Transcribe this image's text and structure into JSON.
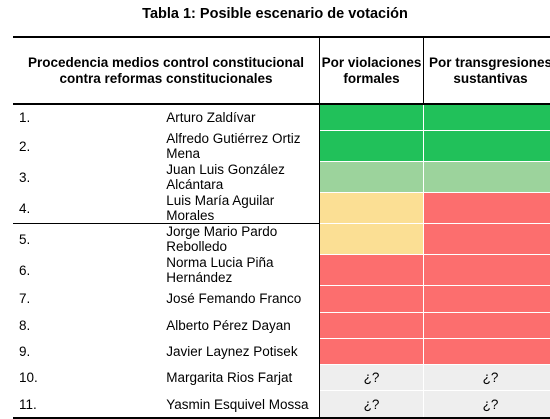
{
  "title": "Tabla 1: Posible escenario de votación",
  "headers": {
    "proc": "Procedencia medios control constitucional contra reformas constitucionales",
    "formal": "Por violaciones formales",
    "sust": "Por transgresiones sustantivas"
  },
  "colors": {
    "green": "#21c15a",
    "light_green": "#9cd39c",
    "yellow": "#fbdf94",
    "red": "#fc6e6e",
    "unknown": "#eeeeee"
  },
  "rows": [
    {
      "num": "1.",
      "name": "Arturo Zaldívar",
      "formal": "",
      "sust": ""
    },
    {
      "num": "2.",
      "name": "Alfredo Gutiérrez Ortiz Mena",
      "formal": "",
      "sust": ""
    },
    {
      "num": "3.",
      "name": "Juan Luis González Alcántara",
      "formal": "",
      "sust": ""
    },
    {
      "num": "4.",
      "name": "Luis María Aguilar Morales",
      "formal": "",
      "sust": ""
    },
    {
      "num": "5.",
      "name": "Jorge Mario Pardo Rebolledo",
      "formal": "",
      "sust": ""
    },
    {
      "num": "6.",
      "name": "Norma Lucia Piña Hernández",
      "formal": "",
      "sust": ""
    },
    {
      "num": "7.",
      "name": "José Femando Franco",
      "formal": "",
      "sust": ""
    },
    {
      "num": "8.",
      "name": "Alberto Pérez Dayan",
      "formal": "",
      "sust": ""
    },
    {
      "num": "9.",
      "name": "Javier Laynez Potisek",
      "formal": "",
      "sust": ""
    },
    {
      "num": "10.",
      "name": "Margarita Rios Farjat",
      "formal": "¿?",
      "sust": "¿?"
    },
    {
      "num": "11.",
      "name": "Yasmin Esquivel Mossa",
      "formal": "¿?",
      "sust": "¿?"
    }
  ]
}
